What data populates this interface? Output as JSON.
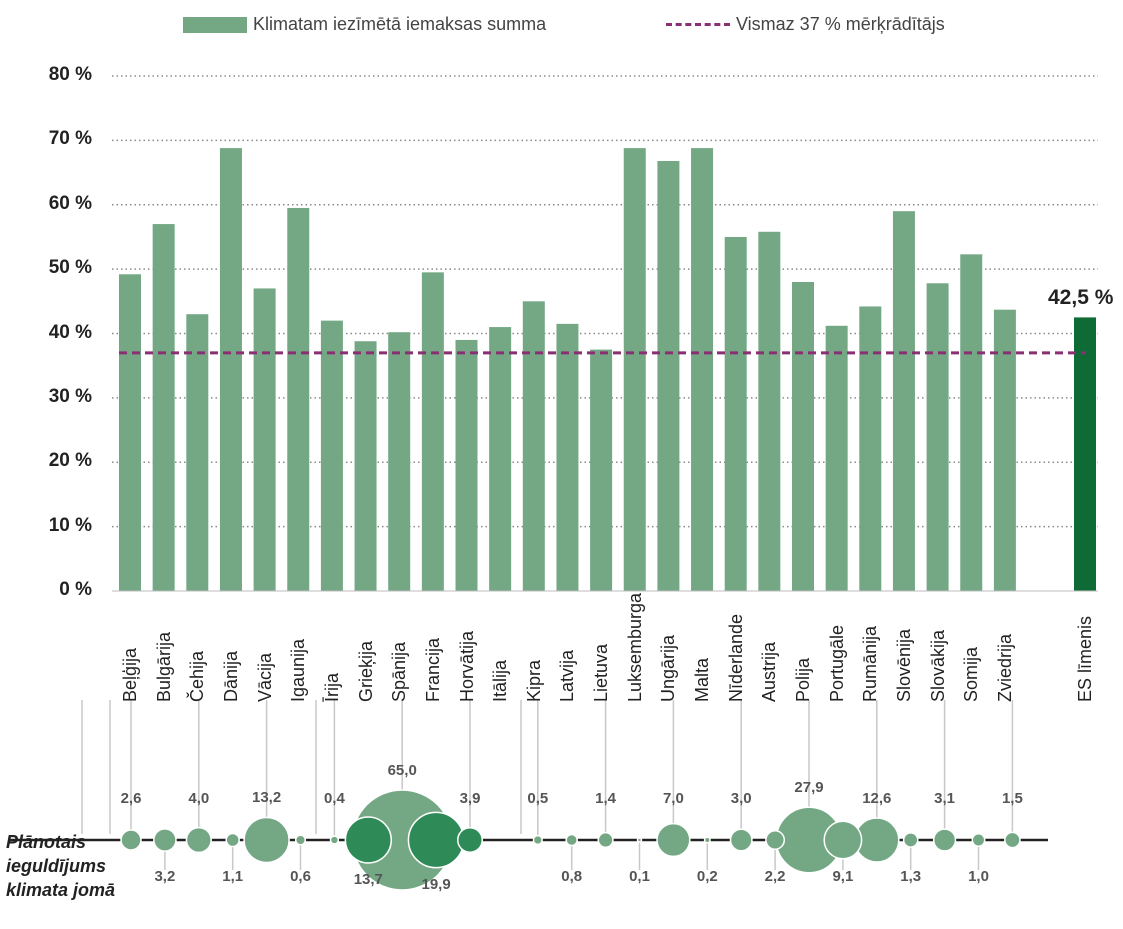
{
  "legend": {
    "bar_label": "Klimatam iezīmētā iemaksas summa",
    "line_label": "Vismaz 37 % mērķrādītājs"
  },
  "chart_data": [
    {
      "type": "bar",
      "categories": [
        "Beļģija",
        "Bulgārija",
        "Čehija",
        "Dānija",
        "Vācija",
        "Igaunija",
        "Īrija",
        "Grieķija",
        "Spānija",
        "Francija",
        "Horvātija",
        "Itālija",
        "Kipra",
        "Latvija",
        "Lietuva",
        "Luksemburga",
        "Ungārija",
        "Malta",
        "Nīderlande",
        "Austrija",
        "Polija",
        "Portugāle",
        "Rumānija",
        "Slovēnija",
        "Slovākija",
        "Somija",
        "Zviedrija",
        "ES līmenis"
      ],
      "series": [
        {
          "name": "Klimatam iezīmētā iemaksas summa",
          "values": [
            49.2,
            57.0,
            43.0,
            68.8,
            47.0,
            59.5,
            42.0,
            38.8,
            40.2,
            49.5,
            39.0,
            41.0,
            45.0,
            41.5,
            37.5,
            68.8,
            66.8,
            68.8,
            55.0,
            55.8,
            48.0,
            41.2,
            44.2,
            59.0,
            47.8,
            52.3,
            43.7,
            42.5
          ]
        }
      ],
      "reference_line": {
        "name": "Vismaz 37 % mērķrādītājs",
        "value": 37
      },
      "highlight_label": "42,5 %",
      "yticks": [
        "0 %",
        "10 %",
        "20 %",
        "30 %",
        "40 %",
        "50 %",
        "60 %",
        "70 %",
        "80 %"
      ],
      "ylim": [
        0,
        80
      ],
      "grid": true,
      "legend_position": "top",
      "colors": {
        "bar": "#74a885",
        "eu_bar": "#0e6b35",
        "target_line": "#8b2f73",
        "grid": "#8a8a8a"
      }
    },
    {
      "type": "scatter",
      "title": "Plānotais ieguldījums klimata jomā",
      "title_lines": [
        "Plānotais",
        "ieguldījums",
        "klimata jomā"
      ],
      "categories": [
        "Beļģija",
        "Bulgārija",
        "Čehija",
        "Dānija",
        "Vācija",
        "Igaunija",
        "Īrija",
        "Grieķija",
        "Spānija",
        "Francija",
        "Horvātija",
        "Itālija",
        "Kipra",
        "Latvija",
        "Lietuva",
        "Luksemburga",
        "Ungārija",
        "Malta",
        "Nīderlande",
        "Austrija",
        "Polija",
        "Portugāle",
        "Rumānija",
        "Slovēnija",
        "Slovākija",
        "Somija",
        "Zviedrija"
      ],
      "values": [
        2.6,
        3.2,
        4.0,
        1.1,
        13.2,
        0.6,
        0.4,
        13.7,
        65.0,
        19.9,
        3.9,
        null,
        0.5,
        0.8,
        1.4,
        0.1,
        7.0,
        0.2,
        3.0,
        2.2,
        27.9,
        9.1,
        12.6,
        1.3,
        3.1,
        1.0,
        1.5
      ],
      "labels": [
        "2,6",
        "3,2",
        "4,0",
        "1,1",
        "13,2",
        "0,6",
        "0,4",
        "13,7",
        "65,0",
        "19,9",
        "3,9",
        "",
        "0,5",
        "0,8",
        "1,4",
        "0,1",
        "7,0",
        "0,2",
        "3,0",
        "2,2",
        "27,9",
        "9,1",
        "12,6",
        "1,3",
        "3,1",
        "1,0",
        "1,5"
      ],
      "colors": {
        "bubble": "#74a885",
        "bubble_dark": "#2e8b57",
        "stroke": "#ffffff",
        "axis": "#222222"
      }
    }
  ]
}
